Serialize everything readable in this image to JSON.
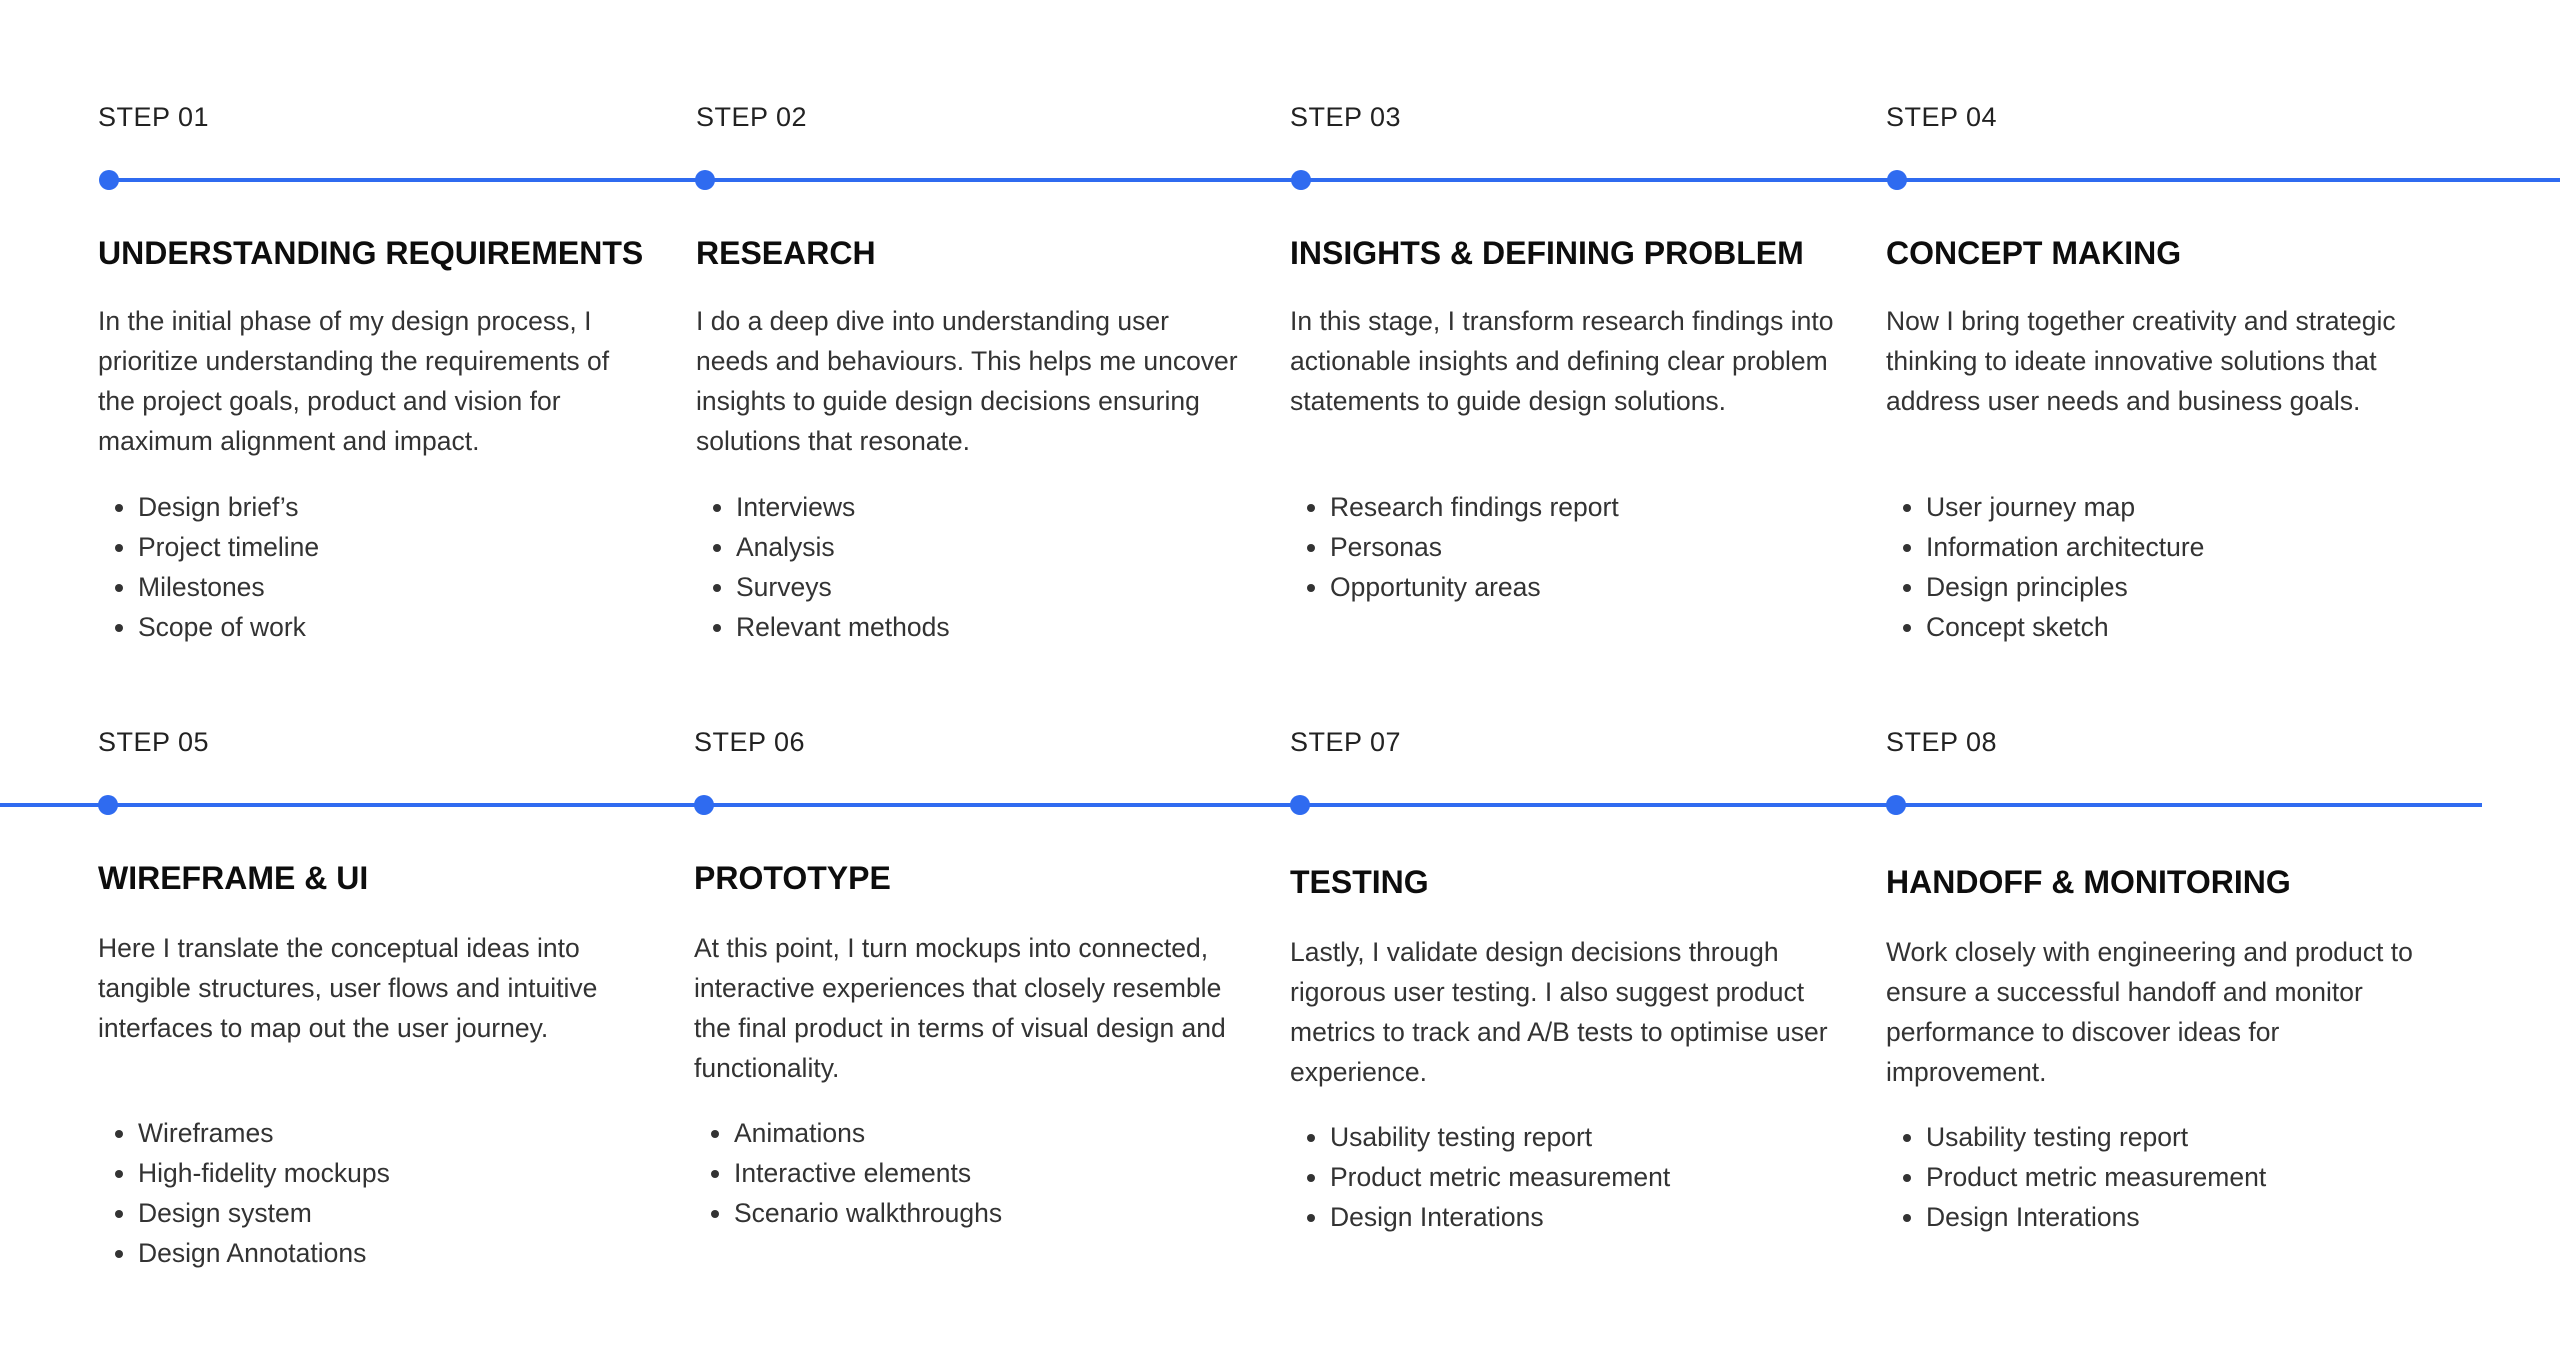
{
  "accent_color": "#2f6bf0",
  "steps": [
    {
      "label": "STEP 01",
      "title": "UNDERSTANDING REQUIREMENTS",
      "body": "In the initial phase of my design process, I prioritize understanding the requirements of the project goals, product and vision for maximum alignment and impact.",
      "items": [
        "Design brief’s",
        "Project timeline",
        "Milestones",
        "Scope of work"
      ]
    },
    {
      "label": "STEP 02",
      "title": "RESEARCH",
      "body": "I do a deep dive into understanding user needs and behaviours. This helps me uncover insights to guide design decisions ensuring solutions that resonate.",
      "items": [
        "Interviews",
        "Analysis",
        "Surveys",
        "Relevant methods"
      ]
    },
    {
      "label": "STEP 03",
      "title": "INSIGHTS & DEFINING PROBLEM",
      "body": "In this stage, I transform research findings into actionable insights and defining clear problem statements to guide design solutions.",
      "items": [
        "Research findings report",
        "Personas",
        "Opportunity areas"
      ]
    },
    {
      "label": "STEP 04",
      "title": "CONCEPT MAKING",
      "body": "Now I bring together creativity and strategic thinking to ideate innovative solutions that address user needs and business goals.",
      "items": [
        "User journey map",
        "Information architecture",
        "Design principles",
        "Concept sketch"
      ]
    },
    {
      "label": "STEP 05",
      "title": "WIREFRAME & UI",
      "body": "Here I translate the conceptual ideas into tangible structures, user flows and intuitive interfaces to map out the user journey.",
      "items": [
        "Wireframes",
        "High-fidelity mockups",
        "Design system",
        "Design Annotations"
      ]
    },
    {
      "label": "STEP 06",
      "title": "PROTOTYPE",
      "body": "At this point, I turn mockups into connected, interactive experiences that closely resemble the final product in terms of visual design and functionality.",
      "items": [
        "Animations",
        "Interactive elements",
        "Scenario walkthroughs"
      ]
    },
    {
      "label": "STEP 07",
      "title": "TESTING",
      "body": "Lastly, I validate design decisions through rigorous user testing. I also suggest product metrics to track and A/B tests to optimise user experience.",
      "items": [
        "Usability testing report",
        "Product metric measurement",
        "Design Interations"
      ]
    },
    {
      "label": "STEP 08",
      "title": "HANDOFF & MONITORING",
      "body": "Work closely with engineering and product to ensure a successful handoff and monitor performance to discover ideas for improvement.",
      "items": [
        "Usability testing report",
        "Product metric measurement",
        "Design Interations"
      ]
    }
  ]
}
